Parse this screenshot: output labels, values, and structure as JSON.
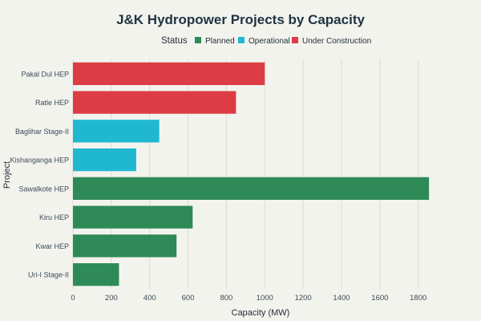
{
  "chart_data": {
    "type": "bar",
    "orientation": "horizontal",
    "title": "J&K Hydropower Projects by Capacity",
    "xlabel": "Capacity (MW)",
    "ylabel": "Project",
    "xlim": [
      0,
      1960
    ],
    "xticks": [
      0,
      200,
      400,
      600,
      800,
      1000,
      1200,
      1400,
      1600,
      1800
    ],
    "legend": {
      "title": "Status",
      "placement": "top",
      "entries": [
        {
          "name": "Planned",
          "color": "#2e8b57"
        },
        {
          "name": "Operational",
          "color": "#1fb8d0"
        },
        {
          "name": "Under Construction",
          "color": "#dc3d45"
        }
      ]
    },
    "grid": true,
    "categories": [
      "Pakal Dul HEP",
      "Ratle HEP",
      "Baglihar Stage-II",
      "Kishanganga HEP",
      "Sawalkote HEP",
      "Kiru HEP",
      "Kwar HEP",
      "Uri-I Stage-II"
    ],
    "values": [
      1000,
      850,
      450,
      330,
      1856,
      624,
      540,
      240
    ],
    "status": [
      "Under Construction",
      "Under Construction",
      "Operational",
      "Operational",
      "Planned",
      "Planned",
      "Planned",
      "Planned"
    ]
  }
}
